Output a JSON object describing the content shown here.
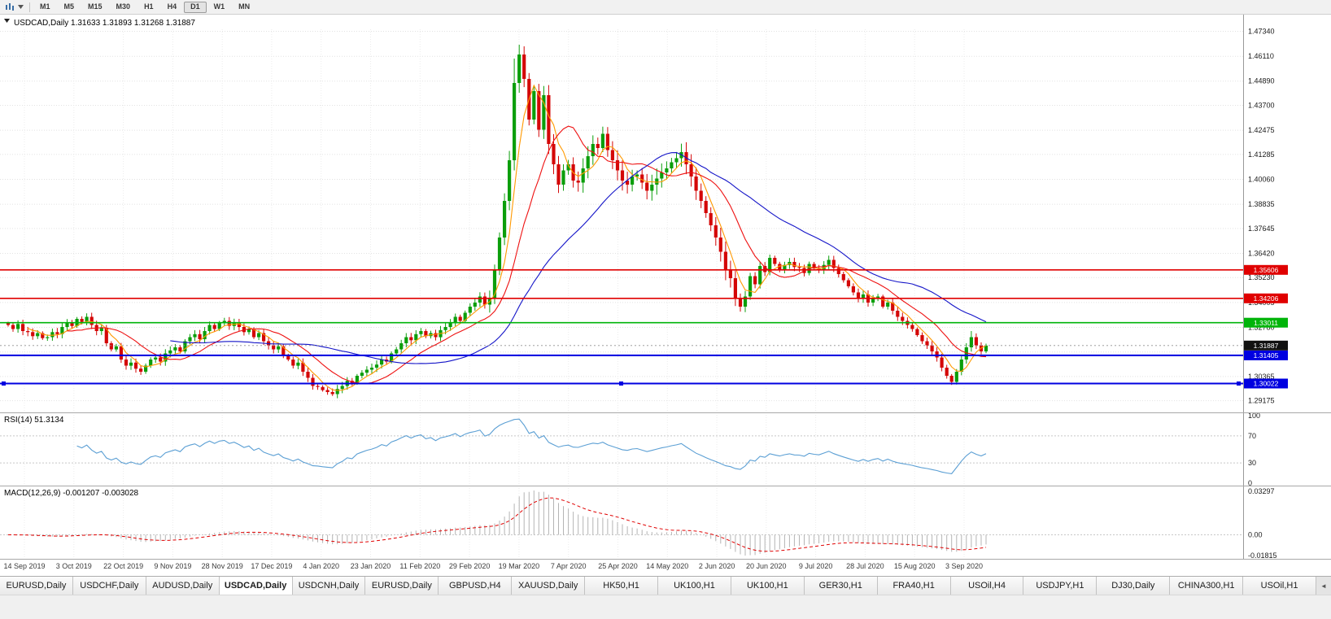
{
  "toolbar": {
    "timeframes": [
      {
        "label": "M1",
        "active": false
      },
      {
        "label": "M5",
        "active": false
      },
      {
        "label": "M15",
        "active": false
      },
      {
        "label": "M30",
        "active": false
      },
      {
        "label": "H1",
        "active": false
      },
      {
        "label": "H4",
        "active": false
      },
      {
        "label": "D1",
        "active": true
      },
      {
        "label": "W1",
        "active": false
      },
      {
        "label": "MN",
        "active": false
      }
    ]
  },
  "main_chart": {
    "title": "USDCAD,Daily 1.31633 1.31893 1.31268 1.31887",
    "price_labels": [
      "1.47340",
      "1.46110",
      "1.44890",
      "1.43700",
      "1.42475",
      "1.41285",
      "1.40060",
      "1.38835",
      "1.37645",
      "1.36420",
      "1.35230",
      "1.34005",
      "1.32780",
      "1.30365",
      "1.29175"
    ],
    "dates": [
      "14 Sep 2019",
      "3 Oct 2019",
      "22 Oct 2019",
      "9 Nov 2019",
      "28 Nov 2019",
      "17 Dec 2019",
      "4 Jan 2020",
      "23 Jan 2020",
      "11 Feb 2020",
      "29 Feb 2020",
      "19 Mar 2020",
      "7 Apr 2020",
      "25 Apr 2020",
      "14 May 2020",
      "2 Jun 2020",
      "20 Jun 2020",
      "9 Jul 2020",
      "28 Jul 2020",
      "15 Aug 2020",
      "3 Sep 2020"
    ],
    "hlines": [
      {
        "tag": "1.35606",
        "price": 1.35606,
        "color": "#e00000",
        "width": 1.6,
        "type": "resistance",
        "selected": false
      },
      {
        "tag": "1.34206",
        "price": 1.34206,
        "color": "#e00000",
        "width": 1.6,
        "type": "resistance",
        "selected": false
      },
      {
        "tag": "1.33011",
        "price": 1.33011,
        "color": "#00b40a",
        "width": 1.6,
        "type": "level",
        "selected": false
      },
      {
        "tag": "1.31405",
        "price": 1.31405,
        "color": "#0000e0",
        "width": 2,
        "type": "support",
        "selected": false
      },
      {
        "tag": "1.30022",
        "price": 1.30022,
        "color": "#0000e0",
        "width": 2,
        "type": "support",
        "selected": true
      }
    ],
    "current_price": {
      "tag": "1.31887",
      "value": 1.31887,
      "bg": "#111111"
    }
  },
  "rsi": {
    "label": "RSI(14) 51.3134",
    "value": 51.3134,
    "period": 14,
    "levels": [
      "100",
      "70",
      "30",
      "0"
    ],
    "color": "#5b9fd4"
  },
  "macd": {
    "label": "MACD(12,26,9) -0.001207 -0.003028",
    "main_value": -0.001207,
    "signal_value": -0.003028,
    "axis_labels": [
      "0.03297",
      "0.00",
      "-0.01815"
    ],
    "histogram_color": "#b4b4b4",
    "signal_color": "#e00000"
  },
  "tabbar": {
    "scroll_icon": "◄",
    "tabs": [
      {
        "label": "EURUSD,Daily",
        "active": false
      },
      {
        "label": "USDCHF,Daily",
        "active": false
      },
      {
        "label": "AUDUSD,Daily",
        "active": false
      },
      {
        "label": "USDCAD,Daily",
        "active": true
      },
      {
        "label": "USDCNH,Daily",
        "active": false
      },
      {
        "label": "EURUSD,Daily",
        "active": false
      },
      {
        "label": "GBPUSD,H4",
        "active": false
      },
      {
        "label": "XAUUSD,Daily",
        "active": false
      },
      {
        "label": "HK50,H1",
        "active": false
      },
      {
        "label": "UK100,H1",
        "active": false
      },
      {
        "label": "UK100,H1",
        "active": false
      },
      {
        "label": "GER30,H1",
        "active": false
      },
      {
        "label": "FRA40,H1",
        "active": false
      },
      {
        "label": "USOil,H4",
        "active": false
      },
      {
        "label": "USDJPY,H1",
        "active": false
      },
      {
        "label": "DJ30,Daily",
        "active": false
      },
      {
        "label": "CHINA300,H1",
        "active": false
      },
      {
        "label": "USOil,H1",
        "active": false
      }
    ]
  },
  "chart_data": {
    "type": "candlestick",
    "symbol": "USDCAD",
    "period": "Daily",
    "colors": {
      "up": "#0b9e0b",
      "down": "#d40707"
    },
    "ohlc_current": {
      "open": 1.31633,
      "high": 1.31893,
      "low": 1.31268,
      "close": 1.31887
    },
    "y_range": [
      1.288,
      1.478
    ],
    "closes": [
      1.329,
      1.327,
      1.3295,
      1.326,
      1.3255,
      1.3235,
      1.325,
      1.3225,
      1.323,
      1.3255,
      1.3245,
      1.328,
      1.33,
      1.3285,
      1.332,
      1.3305,
      1.333,
      1.329,
      1.326,
      1.3275,
      1.32,
      1.317,
      1.3185,
      1.312,
      1.309,
      1.3105,
      1.3075,
      1.306,
      1.309,
      1.312,
      1.313,
      1.311,
      1.315,
      1.3165,
      1.318,
      1.316,
      1.321,
      1.323,
      1.3245,
      1.322,
      1.326,
      1.329,
      1.327,
      1.33,
      1.331,
      1.3285,
      1.33,
      1.328,
      1.3255,
      1.327,
      1.323,
      1.325,
      1.321,
      1.319,
      1.317,
      1.3185,
      1.314,
      1.312,
      1.309,
      1.3105,
      1.306,
      1.303,
      1.299,
      1.2985,
      1.297,
      1.296,
      1.295,
      1.2975,
      1.299,
      1.3015,
      1.3005,
      1.304,
      1.3055,
      1.307,
      1.308,
      1.3095,
      1.312,
      1.311,
      1.315,
      1.317,
      1.32,
      1.323,
      1.3215,
      1.3245,
      1.326,
      1.3235,
      1.325,
      1.323,
      1.3265,
      1.328,
      1.33,
      1.333,
      1.331,
      1.335,
      1.338,
      1.34,
      1.343,
      1.339,
      1.342,
      1.356,
      1.372,
      1.39,
      1.41,
      1.448,
      1.462,
      1.45,
      1.43,
      1.444,
      1.425,
      1.442,
      1.418,
      1.408,
      1.398,
      1.405,
      1.408,
      1.4,
      1.399,
      1.406,
      1.412,
      1.418,
      1.416,
      1.423,
      1.415,
      1.41,
      1.405,
      1.4,
      1.398,
      1.402,
      1.403,
      1.399,
      1.395,
      1.398,
      1.401,
      1.404,
      1.406,
      1.409,
      1.411,
      1.414,
      1.408,
      1.402,
      1.395,
      1.39,
      1.384,
      1.378,
      1.372,
      1.365,
      1.356,
      1.352,
      1.342,
      1.338,
      1.343,
      1.353,
      1.349,
      1.358,
      1.355,
      1.362,
      1.359,
      1.356,
      1.3585,
      1.36,
      1.3575,
      1.357,
      1.3545,
      1.359,
      1.357,
      1.356,
      1.3585,
      1.361,
      1.357,
      1.354,
      1.351,
      1.348,
      1.345,
      1.342,
      1.344,
      1.34,
      1.342,
      1.343,
      1.338,
      1.34,
      1.336,
      1.333,
      1.331,
      1.329,
      1.327,
      1.324,
      1.321,
      1.319,
      1.316,
      1.313,
      1.308,
      1.304,
      1.301,
      1.306,
      1.312,
      1.318,
      1.323,
      1.319,
      1.316,
      1.31887
    ],
    "wick_overrides": {
      "66": {
        "low": 1.2941
      },
      "103": {
        "high": 1.46
      },
      "104": {
        "high": 1.4668
      },
      "121": {
        "high": 1.4265
      },
      "192": {
        "low": 1.2995
      },
      "196": {
        "high": 1.326
      }
    },
    "moving_averages": [
      {
        "name": "fast",
        "period": 5,
        "color": "#ff9900"
      },
      {
        "name": "medium",
        "period": 13,
        "color": "#ee1111"
      },
      {
        "name": "slow",
        "period": 34,
        "color": "#1414c8"
      }
    ]
  }
}
